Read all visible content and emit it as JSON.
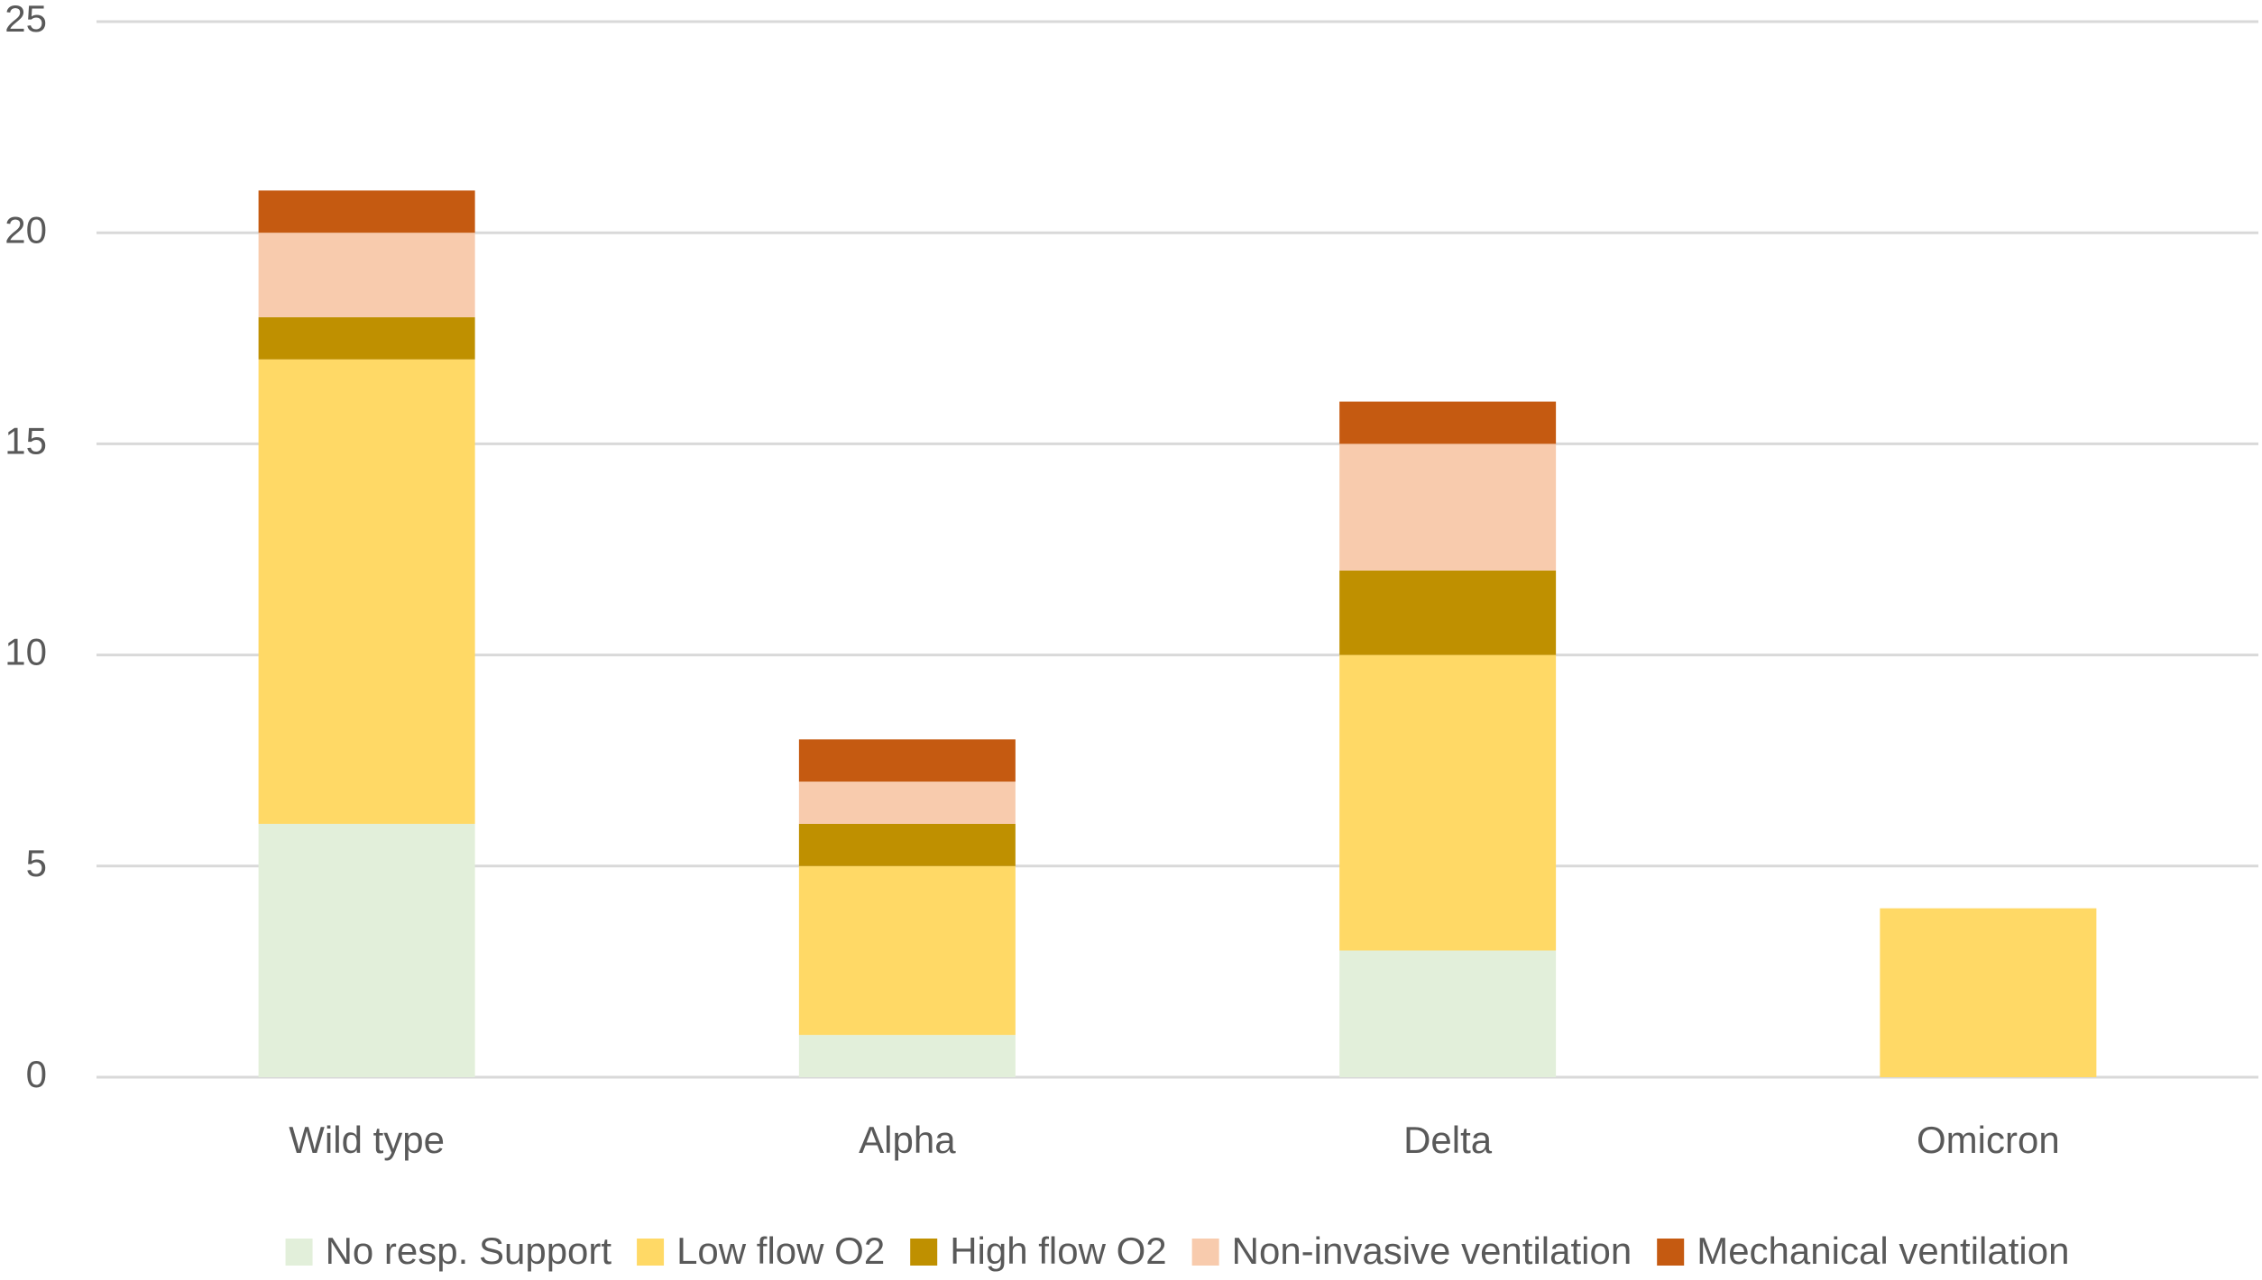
{
  "chart_data": {
    "type": "stacked_bar",
    "categories": [
      "Wild type",
      "Alpha",
      "Delta",
      "Omicron"
    ],
    "series": [
      {
        "name": "No resp. Support",
        "color": "#e2efda",
        "values": [
          6,
          1,
          3,
          0
        ]
      },
      {
        "name": "Low flow O2",
        "color": "#ffd966",
        "values": [
          11,
          4,
          7,
          4
        ]
      },
      {
        "name": "High flow O2",
        "color": "#bf9000",
        "values": [
          1,
          1,
          2,
          0
        ]
      },
      {
        "name": "Non-invasive ventilation",
        "color": "#f8cbad",
        "values": [
          2,
          1,
          3,
          0
        ]
      },
      {
        "name": "Mechanical ventilation",
        "color": "#c55a11",
        "values": [
          1,
          1,
          1,
          0
        ]
      }
    ],
    "ylim": [
      0,
      25
    ],
    "yticks": [
      0,
      5,
      10,
      15,
      20,
      25
    ],
    "grid": true,
    "legend": "bottom"
  }
}
